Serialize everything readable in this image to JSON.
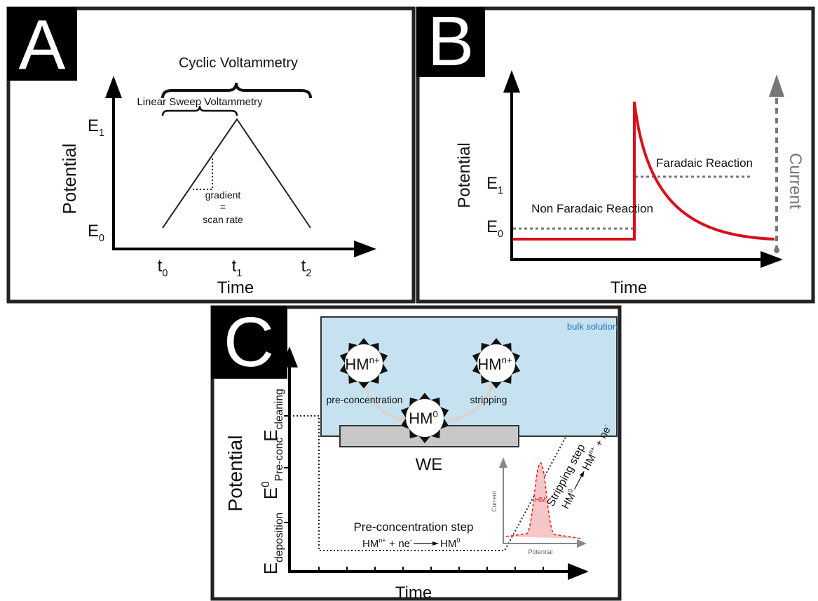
{
  "panel_a": {
    "label": "A",
    "cyclic": "Cyclic Voltammetry",
    "linear": "Linear Sweep Voltammetry",
    "y_axis": "Potential",
    "e1": {
      "base": "E",
      "sub": "1"
    },
    "e0": {
      "base": "E",
      "sub": "0"
    },
    "gradient": [
      "gradient",
      "=",
      "scan rate"
    ],
    "t0": {
      "base": "t",
      "sub": "0"
    },
    "t1": {
      "base": "t",
      "sub": "1"
    },
    "t2": {
      "base": "t",
      "sub": "2"
    },
    "x_axis": "Time"
  },
  "panel_b": {
    "label": "B",
    "y_axis": "Potential",
    "e1": {
      "base": "E",
      "sub": "1"
    },
    "e0": {
      "base": "E",
      "sub": "0"
    },
    "x_axis": "Time",
    "y2_axis": "Current",
    "faradaic": "Faradaic Reaction",
    "non_faradaic": "Non Faradaic Reaction"
  },
  "panel_c": {
    "label": "C",
    "bulk": "bulk solution",
    "ion_left": {
      "base": "HM",
      "sup": "n+"
    },
    "ion_right": {
      "base": "HM",
      "sup": "n+"
    },
    "ion_surface": {
      "base": "HM",
      "sup": "0"
    },
    "pre_conc_arrow": "pre-concentration",
    "strip_arrow": "stripping",
    "electrode": "WE",
    "y_axis": "Potential",
    "e_cleaning": {
      "base": "E",
      "sub": "cleaning"
    },
    "e_preconc": {
      "base": "E",
      "sup": "0",
      "sub": "Pre-conc"
    },
    "e_deposition": {
      "base": "E",
      "sub": "deposition"
    },
    "x_axis": "Time",
    "preconc_step": "Pre-concentration step",
    "preconc_eq": {
      "reactant": {
        "base": "HM",
        "sup": "n+"
      },
      "plus": "+",
      "electron": {
        "base": "ne",
        "sup": "-"
      },
      "product": {
        "base": "HM",
        "sup": "0"
      }
    },
    "strip_step": "Stripping step",
    "strip_eq": {
      "reactant": {
        "base": "HM",
        "sup": "0"
      },
      "product": {
        "base": "HM",
        "sup": "n+"
      },
      "plus": "+",
      "electron": {
        "base": "ne",
        "sup": "-"
      }
    },
    "inset_y": "Current",
    "inset_x": "Potential",
    "inset_peak": "HM"
  }
}
